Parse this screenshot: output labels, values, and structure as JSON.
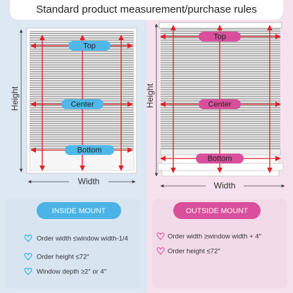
{
  "title": "Standard product measurement/purchase rules",
  "panels": [
    {
      "top": "Top",
      "center": "Center",
      "bottom": "Bottom",
      "height": "Height",
      "width": "Width",
      "mount_title": "INSIDE MOUNT",
      "rules": [
        "Order width ≤window width-1/4",
        "Order height ≤72″",
        "Window depth ≥2″ or 4″"
      ]
    },
    {
      "top": "Top",
      "center": "Center",
      "bottom": "Bottom",
      "height": "Height",
      "width": "Width",
      "mount_title": "OUTSIDE MOUNT",
      "rules": [
        "Order width ≥window width + 4″",
        "Order height ≤72″"
      ]
    }
  ]
}
